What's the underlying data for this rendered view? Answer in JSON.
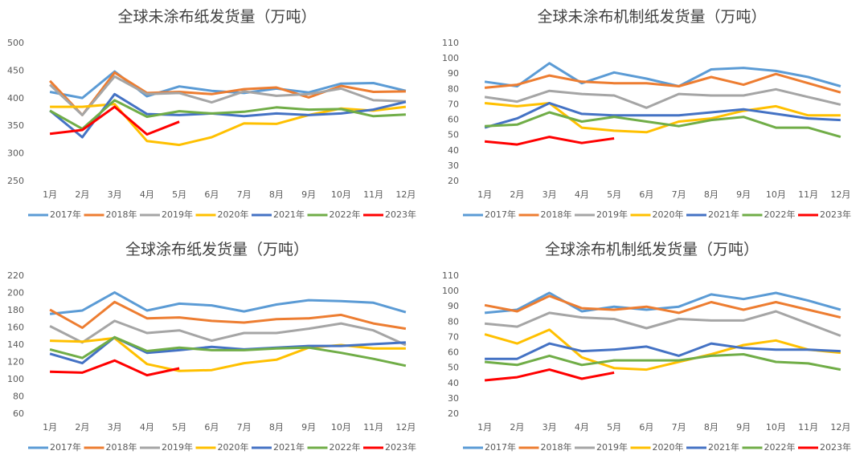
{
  "chart_data": [
    {
      "type": "line",
      "title": "全球未涂布纸发货量（万吨）",
      "categories": [
        "1月",
        "2月",
        "3月",
        "4月",
        "5月",
        "6月",
        "7月",
        "8月",
        "9月",
        "10月",
        "11月",
        "12月"
      ],
      "ylim": [
        250,
        500
      ],
      "yticks": [
        250,
        300,
        350,
        400,
        450,
        500
      ],
      "grid": false,
      "legend": "bottom",
      "series": [
        {
          "name": "2017年",
          "color": "#5b9bd5",
          "values": [
            412,
            401,
            449,
            404,
            422,
            414,
            410,
            418,
            411,
            427,
            428,
            414
          ]
        },
        {
          "name": "2018年",
          "color": "#ed7d31",
          "values": [
            432,
            370,
            447,
            410,
            412,
            408,
            417,
            420,
            402,
            423,
            412,
            413
          ]
        },
        {
          "name": "2019年",
          "color": "#a5a5a5",
          "values": [
            425,
            370,
            440,
            408,
            410,
            393,
            413,
            405,
            408,
            418,
            397,
            395
          ]
        },
        {
          "name": "2020年",
          "color": "#ffc000",
          "values": [
            385,
            385,
            390,
            323,
            316,
            330,
            355,
            354,
            370,
            382,
            378,
            385
          ]
        },
        {
          "name": "2021年",
          "color": "#4472c4",
          "values": [
            378,
            330,
            408,
            372,
            370,
            373,
            368,
            373,
            370,
            373,
            380,
            394
          ]
        },
        {
          "name": "2022年",
          "color": "#70ad47",
          "values": [
            378,
            345,
            397,
            367,
            377,
            373,
            376,
            384,
            380,
            381,
            368,
            371
          ]
        },
        {
          "name": "2023年",
          "color": "#ff0000",
          "values": [
            336,
            343,
            385,
            335,
            358,
            null,
            null,
            null,
            null,
            null,
            null,
            null
          ]
        }
      ]
    },
    {
      "type": "line",
      "title": "全球未涂布机制纸发货量（万吨）",
      "categories": [
        "1月",
        "2月",
        "3月",
        "4月",
        "5月",
        "6月",
        "7月",
        "8月",
        "9月",
        "10月",
        "11月",
        "12月"
      ],
      "ylim": [
        20,
        110
      ],
      "yticks": [
        20,
        30,
        40,
        50,
        60,
        70,
        80,
        90,
        100,
        110
      ],
      "grid": false,
      "legend": "bottom",
      "series": [
        {
          "name": "2017年",
          "color": "#5b9bd5",
          "values": [
            85,
            82,
            97,
            84,
            91,
            87,
            82,
            93,
            94,
            92,
            88,
            82
          ]
        },
        {
          "name": "2018年",
          "color": "#ed7d31",
          "values": [
            81,
            83,
            89,
            85,
            84,
            84,
            82,
            88,
            83,
            90,
            84,
            78
          ]
        },
        {
          "name": "2019年",
          "color": "#a5a5a5",
          "values": [
            75,
            72,
            79,
            77,
            76,
            68,
            77,
            76,
            76,
            80,
            75,
            70
          ]
        },
        {
          "name": "2020年",
          "color": "#ffc000",
          "values": [
            71,
            69,
            71,
            55,
            53,
            52,
            59,
            61,
            66,
            69,
            63,
            63
          ]
        },
        {
          "name": "2021年",
          "color": "#4472c4",
          "values": [
            55,
            61,
            71,
            64,
            63,
            63,
            63,
            65,
            67,
            64,
            61,
            60
          ]
        },
        {
          "name": "2022年",
          "color": "#70ad47",
          "values": [
            56,
            57,
            65,
            59,
            62,
            59,
            56,
            60,
            62,
            55,
            55,
            49
          ]
        },
        {
          "name": "2023年",
          "color": "#ff0000",
          "values": [
            46,
            44,
            49,
            45,
            48,
            null,
            null,
            null,
            null,
            null,
            null,
            null
          ]
        }
      ]
    },
    {
      "type": "line",
      "title": "全球涂布纸发货量（万吨）",
      "categories": [
        "1月",
        "2月",
        "3月",
        "4月",
        "5月",
        "6月",
        "7月",
        "8月",
        "9月",
        "10月",
        "11月",
        "12月"
      ],
      "ylim": [
        60,
        220
      ],
      "yticks": [
        60,
        80,
        100,
        120,
        140,
        160,
        180,
        200,
        220
      ],
      "grid": false,
      "legend": "bottom",
      "series": [
        {
          "name": "2017年",
          "color": "#5b9bd5",
          "values": [
            176,
            180,
            201,
            180,
            188,
            186,
            179,
            187,
            192,
            191,
            189,
            178
          ]
        },
        {
          "name": "2018年",
          "color": "#ed7d31",
          "values": [
            181,
            160,
            190,
            171,
            172,
            168,
            166,
            170,
            171,
            175,
            165,
            159
          ]
        },
        {
          "name": "2019年",
          "color": "#a5a5a5",
          "values": [
            162,
            143,
            168,
            154,
            157,
            145,
            154,
            154,
            159,
            165,
            157,
            140
          ]
        },
        {
          "name": "2020年",
          "color": "#ffc000",
          "values": [
            145,
            144,
            148,
            118,
            110,
            111,
            119,
            123,
            137,
            140,
            136,
            136
          ]
        },
        {
          "name": "2021年",
          "color": "#4472c4",
          "values": [
            130,
            119,
            149,
            131,
            134,
            138,
            135,
            137,
            139,
            139,
            141,
            143
          ]
        },
        {
          "name": "2022年",
          "color": "#70ad47",
          "values": [
            135,
            125,
            149,
            133,
            137,
            134,
            134,
            136,
            137,
            131,
            124,
            116
          ]
        },
        {
          "name": "2023年",
          "color": "#ff0000",
          "values": [
            109,
            108,
            122,
            105,
            113,
            null,
            null,
            null,
            null,
            null,
            null,
            null
          ]
        }
      ]
    },
    {
      "type": "line",
      "title": "全球涂布机制纸发货量（万吨）",
      "categories": [
        "1月",
        "2月",
        "3月",
        "4月",
        "5月",
        "6月",
        "7月",
        "8月",
        "9月",
        "10月",
        "11月",
        "12月"
      ],
      "ylim": [
        20,
        110
      ],
      "yticks": [
        20,
        30,
        40,
        50,
        60,
        70,
        80,
        90,
        100,
        110
      ],
      "grid": false,
      "legend": "bottom",
      "series": [
        {
          "name": "2017年",
          "color": "#5b9bd5",
          "values": [
            86,
            88,
            99,
            87,
            90,
            88,
            90,
            98,
            95,
            99,
            94,
            88
          ]
        },
        {
          "name": "2018年",
          "color": "#ed7d31",
          "values": [
            91,
            87,
            97,
            89,
            88,
            90,
            86,
            93,
            88,
            93,
            88,
            83
          ]
        },
        {
          "name": "2019年",
          "color": "#a5a5a5",
          "values": [
            79,
            77,
            86,
            83,
            82,
            76,
            82,
            81,
            81,
            87,
            79,
            71
          ]
        },
        {
          "name": "2020年",
          "color": "#ffc000",
          "values": [
            72,
            66,
            75,
            57,
            50,
            49,
            54,
            59,
            65,
            68,
            62,
            60
          ]
        },
        {
          "name": "2021年",
          "color": "#4472c4",
          "values": [
            56,
            56,
            66,
            61,
            62,
            64,
            58,
            66,
            63,
            62,
            62,
            61
          ]
        },
        {
          "name": "2022年",
          "color": "#70ad47",
          "values": [
            54,
            52,
            58,
            52,
            55,
            55,
            55,
            58,
            59,
            54,
            53,
            49
          ]
        },
        {
          "name": "2023年",
          "color": "#ff0000",
          "values": [
            42,
            44,
            49,
            43,
            47,
            null,
            null,
            null,
            null,
            null,
            null,
            null
          ]
        }
      ]
    }
  ]
}
